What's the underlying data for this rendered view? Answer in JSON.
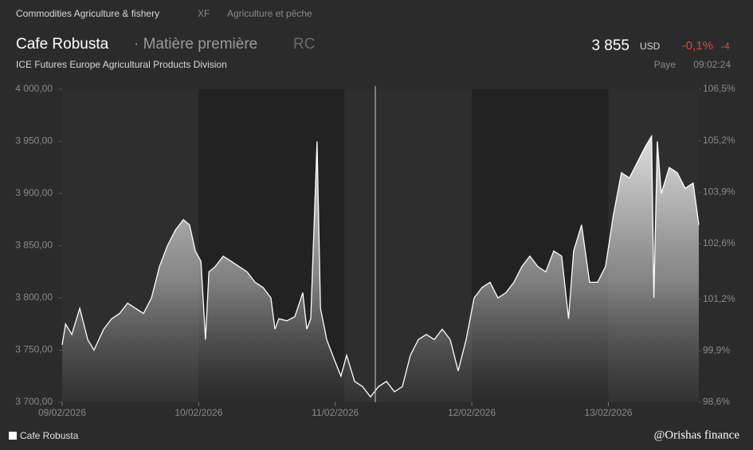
{
  "header": {
    "breadcrumb": "Commodities Agriculture & fishery",
    "code": "XF",
    "category": "Agriculture et pêche",
    "name": "Cafe Robusta",
    "kind": "· Matière première",
    "ticker": "RC",
    "price": "3 855",
    "currency": "USD",
    "change_pct": "-0,1%",
    "change": "-4",
    "exchange": "ICE Futures Europe Agricultural Products Division",
    "status": "Paye",
    "time": "09:02:24"
  },
  "watermark": "@Orishas finance",
  "chart_data": {
    "type": "area",
    "x": [
      0,
      0.6,
      1.7,
      3.1,
      4.5,
      5.6,
      7.3,
      8.7,
      10.1,
      11.5,
      12.9,
      14.3,
      15.7,
      17.1,
      18.5,
      19.9,
      21.3,
      22.4,
      23.4,
      24.4,
      25.2,
      25.8,
      26.9,
      28.3,
      29.7,
      31.1,
      32.5,
      33.9,
      35.3,
      36.7,
      37.4,
      38.1,
      39.5,
      40.9,
      42.3,
      43.0,
      43.7,
      44.8,
      45.4,
      46.5,
      47.9,
      49.0,
      50.0,
      51.4,
      52.8,
      54.2,
      55.6,
      57.0,
      58.4,
      59.8,
      61.2,
      62.6,
      64.0,
      65.4,
      66.8,
      68.2,
      69.6,
      71.0,
      72.4,
      73.8,
      75.2,
      76.6,
      78.0,
      79.4,
      80.8,
      82.2,
      83.6,
      85.0,
      86.4,
      87.8,
      89.0,
      89.9,
      91.3,
      92.7,
      94.1,
      95.5,
      96.9,
      98.3,
      99.7,
      101.1,
      102.5,
      103.6,
      104.0,
      104.6,
      105.3,
      106.7,
      108.1,
      109.5,
      110.9,
      111.9
    ],
    "series": [
      {
        "name": "Cafe Robusta",
        "color": "#ffffff",
        "values": [
          3755,
          3775,
          3765,
          3790,
          3760,
          3750,
          3770,
          3780,
          3785,
          3795,
          3790,
          3785,
          3800,
          3830,
          3850,
          3865,
          3875,
          3870,
          3845,
          3835,
          3760,
          3825,
          3830,
          3840,
          3835,
          3830,
          3825,
          3815,
          3810,
          3800,
          3770,
          3780,
          3778,
          3782,
          3805,
          3770,
          3780,
          3950,
          3790,
          3760,
          3740,
          3725,
          3745,
          3720,
          3715,
          3705,
          3715,
          3720,
          3710,
          3715,
          3745,
          3760,
          3765,
          3760,
          3770,
          3760,
          3730,
          3760,
          3800,
          3810,
          3815,
          3800,
          3805,
          3815,
          3830,
          3840,
          3830,
          3825,
          3845,
          3840,
          3780,
          3845,
          3870,
          3815,
          3815,
          3830,
          3880,
          3920,
          3915,
          3930,
          3945,
          3955,
          3800,
          3950,
          3900,
          3925,
          3920,
          3905,
          3910,
          3870
        ]
      }
    ],
    "xlim": [
      0,
      111.9
    ],
    "xticks": [
      {
        "value": 0,
        "label": "09/02/2026"
      },
      {
        "value": 24,
        "label": "10/02/2026"
      },
      {
        "value": 48,
        "label": "11/02/2026"
      },
      {
        "value": 72,
        "label": "12/02/2026"
      },
      {
        "value": 96,
        "label": "13/02/2026"
      }
    ],
    "shaded_ranges": [
      [
        24,
        49.6
      ],
      [
        72,
        96
      ]
    ],
    "ylim": [
      3700,
      4000
    ],
    "yticks": [
      {
        "value": 3700,
        "label": "3 700,00"
      },
      {
        "value": 3750,
        "label": "3 750,00"
      },
      {
        "value": 3800,
        "label": "3 800,00"
      },
      {
        "value": 3850,
        "label": "3 850,00"
      },
      {
        "value": 3900,
        "label": "3 900,00"
      },
      {
        "value": 3950,
        "label": "3 950,00"
      },
      {
        "value": 4000,
        "label": "4 000,00"
      }
    ],
    "y2lim": [
      98.6,
      106.5
    ],
    "y2ticks": [
      {
        "value": 98.6,
        "label": "98,6%"
      },
      {
        "value": 99.9,
        "label": "99,9%"
      },
      {
        "value": 101.2,
        "label": "101,2%"
      },
      {
        "value": 102.6,
        "label": "102,6%"
      },
      {
        "value": 103.9,
        "label": "103,9%"
      },
      {
        "value": 105.2,
        "label": "105,2%"
      },
      {
        "value": 106.5,
        "label": "106,5%"
      }
    ],
    "legend": "bottom-left"
  }
}
